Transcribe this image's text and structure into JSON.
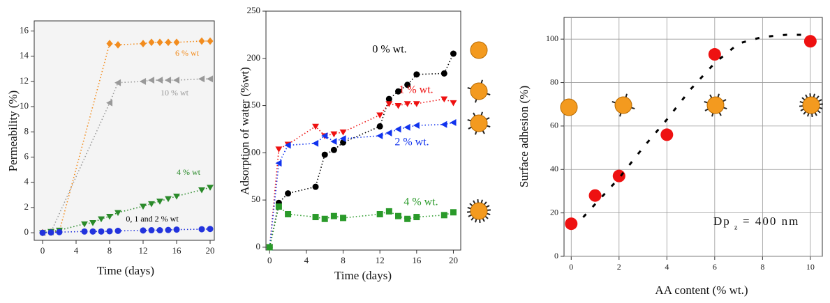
{
  "chart_data": [
    {
      "type": "line",
      "xlabel": "Time (days)",
      "ylabel": "Permeability (%)",
      "xlim": [
        -1,
        20.5
      ],
      "ylim": [
        -0.6,
        16.8
      ],
      "xticks": [
        0,
        4,
        8,
        12,
        16,
        20
      ],
      "yticks": [
        0,
        2,
        4,
        6,
        8,
        10,
        12,
        14,
        16
      ],
      "grid": false,
      "line_style": "dotted",
      "series": [
        {
          "name": "6 % wt",
          "color": "#f28c1e",
          "marker": "diamond",
          "x": [
            0,
            1,
            2,
            8,
            9,
            12,
            13,
            14,
            15,
            16,
            19,
            20
          ],
          "values": [
            0,
            0.05,
            0.1,
            15,
            14.9,
            15,
            15.1,
            15.1,
            15.1,
            15.1,
            15.2,
            15.2
          ]
        },
        {
          "name": "10 % wt",
          "color": "#999999",
          "marker": "tri-left",
          "x": [
            0,
            1,
            8,
            9,
            12,
            13,
            14,
            15,
            16,
            19,
            20
          ],
          "values": [
            0,
            0.05,
            10.3,
            11.9,
            12,
            12.1,
            12.1,
            12.1,
            12.1,
            12.2,
            12.2
          ]
        },
        {
          "name": "4 % wt",
          "color": "#2a8a2a",
          "marker": "tri-down",
          "x": [
            0,
            1,
            2,
            5,
            6,
            7,
            8,
            9,
            12,
            13,
            14,
            15,
            16,
            19,
            20
          ],
          "values": [
            0,
            0.1,
            0.2,
            0.7,
            0.8,
            1.1,
            1.3,
            1.6,
            2.1,
            2.3,
            2.5,
            2.7,
            2.9,
            3.4,
            3.6
          ]
        },
        {
          "name": "0, 1 and 2 % wt",
          "color": "#2233dd",
          "label_color": "#000000",
          "marker": "circle",
          "x": [
            0,
            1,
            2,
            5,
            6,
            7,
            8,
            9,
            12,
            13,
            14,
            15,
            16,
            19,
            20
          ],
          "values": [
            0,
            0.02,
            0.05,
            0.1,
            0.1,
            0.1,
            0.12,
            0.15,
            0.18,
            0.2,
            0.2,
            0.22,
            0.25,
            0.28,
            0.3
          ]
        }
      ]
    },
    {
      "type": "line",
      "xlabel": "Time (days)",
      "ylabel": "Adsorption of water (%wt)",
      "xlim": [
        -0.4,
        20.8
      ],
      "ylim": [
        -3,
        250
      ],
      "xticks": [
        0,
        4,
        8,
        12,
        16,
        20
      ],
      "yticks": [
        0,
        50,
        100,
        150,
        200,
        250
      ],
      "grid": false,
      "line_style": "dotted",
      "series": [
        {
          "name": "0 % wt.",
          "color": "#000000",
          "marker": "circle",
          "x": [
            0,
            1,
            2,
            5,
            6,
            7,
            8,
            12,
            13,
            14,
            15,
            16,
            19,
            20
          ],
          "values": [
            0,
            47,
            57,
            64,
            98,
            103,
            111,
            128,
            157,
            165,
            172,
            183,
            184,
            205
          ]
        },
        {
          "name": "1 % wt.",
          "color": "#ee1111",
          "marker": "tri-down",
          "x": [
            0,
            1,
            2,
            5,
            6,
            7,
            8,
            12,
            13,
            14,
            15,
            16,
            19,
            20
          ],
          "values": [
            0,
            104,
            109,
            128,
            118,
            120,
            122,
            140,
            152,
            150,
            152,
            152,
            157,
            153
          ]
        },
        {
          "name": "2 % wt.",
          "color": "#1133ee",
          "marker": "tri-left",
          "x": [
            0,
            1,
            2,
            5,
            6,
            7,
            8,
            12,
            13,
            14,
            15,
            16,
            19,
            20
          ],
          "values": [
            0,
            89,
            108,
            110,
            118,
            112,
            115,
            118,
            121,
            125,
            127,
            129,
            130,
            132
          ]
        },
        {
          "name": "4 % wt.",
          "color": "#2a9a2a",
          "marker": "square",
          "x": [
            0,
            1,
            2,
            5,
            6,
            7,
            8,
            12,
            13,
            14,
            15,
            16,
            19,
            20
          ],
          "values": [
            0,
            43,
            35,
            32,
            30,
            33,
            31,
            35,
            38,
            33,
            30,
            32,
            34,
            37
          ]
        }
      ]
    },
    {
      "type": "scatter",
      "xlabel": "AA content (% wt.)",
      "ylabel": "Surface adhesion (%)",
      "xlim": [
        -0.3,
        10.5
      ],
      "ylim": [
        0,
        110
      ],
      "xticks": [
        0,
        2,
        4,
        6,
        8,
        10
      ],
      "yticks": [
        0,
        20,
        40,
        60,
        80,
        100
      ],
      "grid": true,
      "annotation": [
        "Dp",
        "z",
        "= 400 nm"
      ],
      "series": [
        {
          "color": "#ee1111",
          "marker": "circle",
          "x": [
            0,
            1,
            2,
            4,
            6,
            10
          ],
          "values": [
            15,
            28,
            37,
            56,
            93,
            99
          ]
        },
        {
          "color": "#000000",
          "line_style": "dashed",
          "x": [
            0.5,
            1,
            2,
            3,
            4,
            5,
            6,
            7,
            8,
            9,
            10
          ],
          "values": [
            18,
            24,
            36,
            50,
            63,
            77,
            89,
            98,
            101,
            102,
            102
          ]
        }
      ]
    }
  ]
}
